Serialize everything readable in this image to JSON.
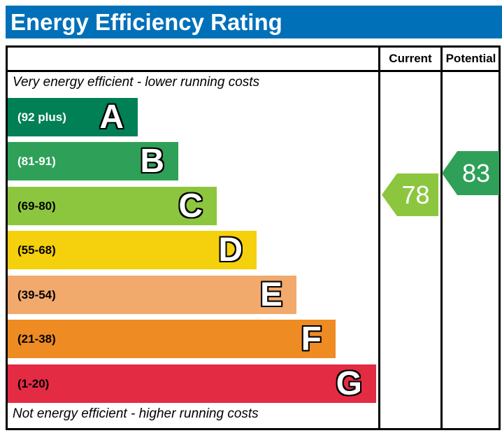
{
  "header": {
    "title": "Energy Efficiency Rating",
    "bg": "#0070b8",
    "text_color": "#ffffff"
  },
  "columns": {
    "current": "Current",
    "potential": "Potential"
  },
  "notes": {
    "top": "Very energy efficient - lower running costs",
    "bottom": "Not energy efficient - higher running costs"
  },
  "bands": [
    {
      "letter": "A",
      "range": "(92 plus)",
      "color": "#008054",
      "range_text_color": "#ffffff"
    },
    {
      "letter": "B",
      "range": "(81-91)",
      "color": "#2fa058",
      "range_text_color": "#ffffff"
    },
    {
      "letter": "C",
      "range": "(69-80)",
      "color": "#8cc63f",
      "range_text_color": "#000000"
    },
    {
      "letter": "D",
      "range": "(55-68)",
      "color": "#f5d00d",
      "range_text_color": "#000000"
    },
    {
      "letter": "E",
      "range": "(39-54)",
      "color": "#f2a96c",
      "range_text_color": "#000000"
    },
    {
      "letter": "F",
      "range": "(21-38)",
      "color": "#ee8b23",
      "range_text_color": "#000000"
    },
    {
      "letter": "G",
      "range": "(1-20)",
      "color": "#e42b44",
      "range_text_color": "#000000"
    }
  ],
  "current_arrow": {
    "value": "78",
    "color": "#8cc63f"
  },
  "potential_arrow": {
    "value": "83",
    "color": "#2fa058"
  },
  "chart_data": {
    "type": "bar",
    "title": "Energy Efficiency Rating",
    "categories": [
      "A",
      "B",
      "C",
      "D",
      "E",
      "F",
      "G"
    ],
    "band_ranges": [
      "92 plus",
      "81-91",
      "69-80",
      "55-68",
      "39-54",
      "21-38",
      "1-20"
    ],
    "band_colors": [
      "#008054",
      "#2fa058",
      "#8cc63f",
      "#f5d00d",
      "#f2a96c",
      "#ee8b23",
      "#e42b44"
    ],
    "columns": [
      "Current",
      "Potential"
    ],
    "series": [
      {
        "name": "Current",
        "value": 78,
        "band": "C",
        "color": "#8cc63f"
      },
      {
        "name": "Potential",
        "value": 83,
        "band": "B",
        "color": "#2fa058"
      }
    ],
    "top_label": "Very energy efficient - lower running costs",
    "bottom_label": "Not energy efficient - higher running costs",
    "orientation": "horizontal",
    "value_range": [
      1,
      100
    ]
  }
}
